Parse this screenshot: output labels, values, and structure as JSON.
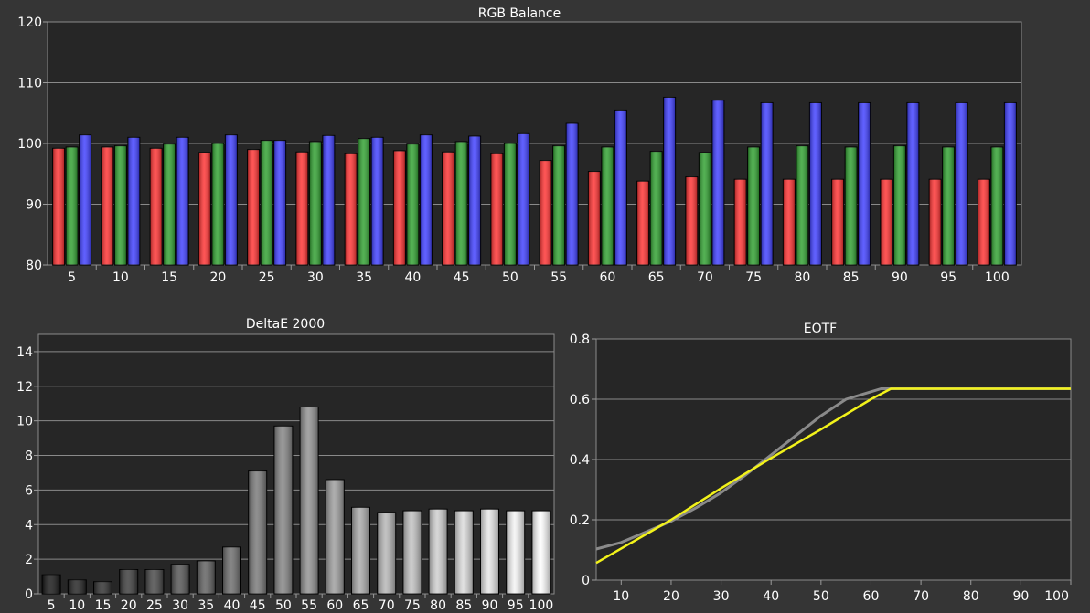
{
  "chart_data": [
    {
      "type": "bar",
      "title": "RGB Balance",
      "categories": [
        "5",
        "10",
        "15",
        "20",
        "25",
        "30",
        "35",
        "40",
        "45",
        "50",
        "55",
        "60",
        "65",
        "70",
        "75",
        "80",
        "85",
        "90",
        "95",
        "100"
      ],
      "ylim": [
        80,
        120
      ],
      "yticks": [
        80,
        90,
        100,
        110,
        120
      ],
      "grid": true,
      "series": [
        {
          "color": "#ff3030",
          "values": [
            99.2,
            99.4,
            99.2,
            98.5,
            99.0,
            98.6,
            98.3,
            98.8,
            98.6,
            98.3,
            97.2,
            95.4,
            93.8,
            94.5,
            94.1,
            94.1,
            94.1,
            94.1,
            94.1,
            94.1
          ]
        },
        {
          "color": "#2ea02e",
          "values": [
            99.4,
            99.6,
            99.9,
            100.0,
            100.5,
            100.3,
            100.8,
            99.9,
            100.3,
            100.0,
            99.6,
            99.4,
            98.7,
            98.5,
            99.4,
            99.6,
            99.4,
            99.6,
            99.4,
            99.4
          ]
        },
        {
          "color": "#3d3dff",
          "values": [
            101.4,
            101.0,
            101.0,
            101.4,
            100.5,
            101.3,
            101.0,
            101.4,
            101.2,
            101.6,
            103.3,
            105.5,
            107.6,
            107.1,
            106.7,
            106.7,
            106.7,
            106.7,
            106.7,
            106.7
          ]
        }
      ]
    },
    {
      "type": "bar",
      "title": "DeltaE 2000",
      "categories": [
        "5",
        "10",
        "15",
        "20",
        "25",
        "30",
        "35",
        "40",
        "45",
        "50",
        "55",
        "60",
        "65",
        "70",
        "75",
        "80",
        "85",
        "90",
        "95",
        "100"
      ],
      "values": [
        1.1,
        0.8,
        0.7,
        1.4,
        1.4,
        1.7,
        1.9,
        2.7,
        7.1,
        9.7,
        10.8,
        6.6,
        5.0,
        4.7,
        4.8,
        4.9,
        4.8,
        4.9,
        4.8,
        4.8
      ],
      "ylim": [
        0,
        15
      ],
      "yticks": [
        0,
        2,
        4,
        6,
        8,
        10,
        12,
        14
      ],
      "grid": true
    },
    {
      "type": "line",
      "title": "EOTF",
      "xlim": [
        5,
        100
      ],
      "xticks": [
        10,
        20,
        30,
        40,
        50,
        60,
        70,
        80,
        90,
        100
      ],
      "ylim": [
        0,
        0.8
      ],
      "yticks": [
        0,
        0.2,
        0.4,
        0.6,
        0.8
      ],
      "grid": true,
      "series": [
        {
          "color": "#8a8a8a",
          "x": [
            5,
            10,
            15,
            20,
            25,
            30,
            35,
            40,
            45,
            50,
            55,
            60,
            62,
            64,
            70,
            80,
            90,
            100
          ],
          "y": [
            0.103,
            0.125,
            0.16,
            0.195,
            0.24,
            0.29,
            0.35,
            0.415,
            0.48,
            0.545,
            0.6,
            0.625,
            0.635,
            0.635,
            0.635,
            0.635,
            0.635,
            0.635
          ]
        },
        {
          "color": "#f2f21a",
          "x": [
            5,
            20,
            30,
            40,
            50,
            60,
            64,
            70,
            80,
            90,
            100
          ],
          "y": [
            0.057,
            0.2,
            0.305,
            0.405,
            0.5,
            0.6,
            0.635,
            0.635,
            0.635,
            0.635,
            0.635
          ]
        }
      ],
      "tick_labels": [
        "0",
        "0.2",
        "0.4",
        "0.6",
        "0.8"
      ]
    }
  ]
}
